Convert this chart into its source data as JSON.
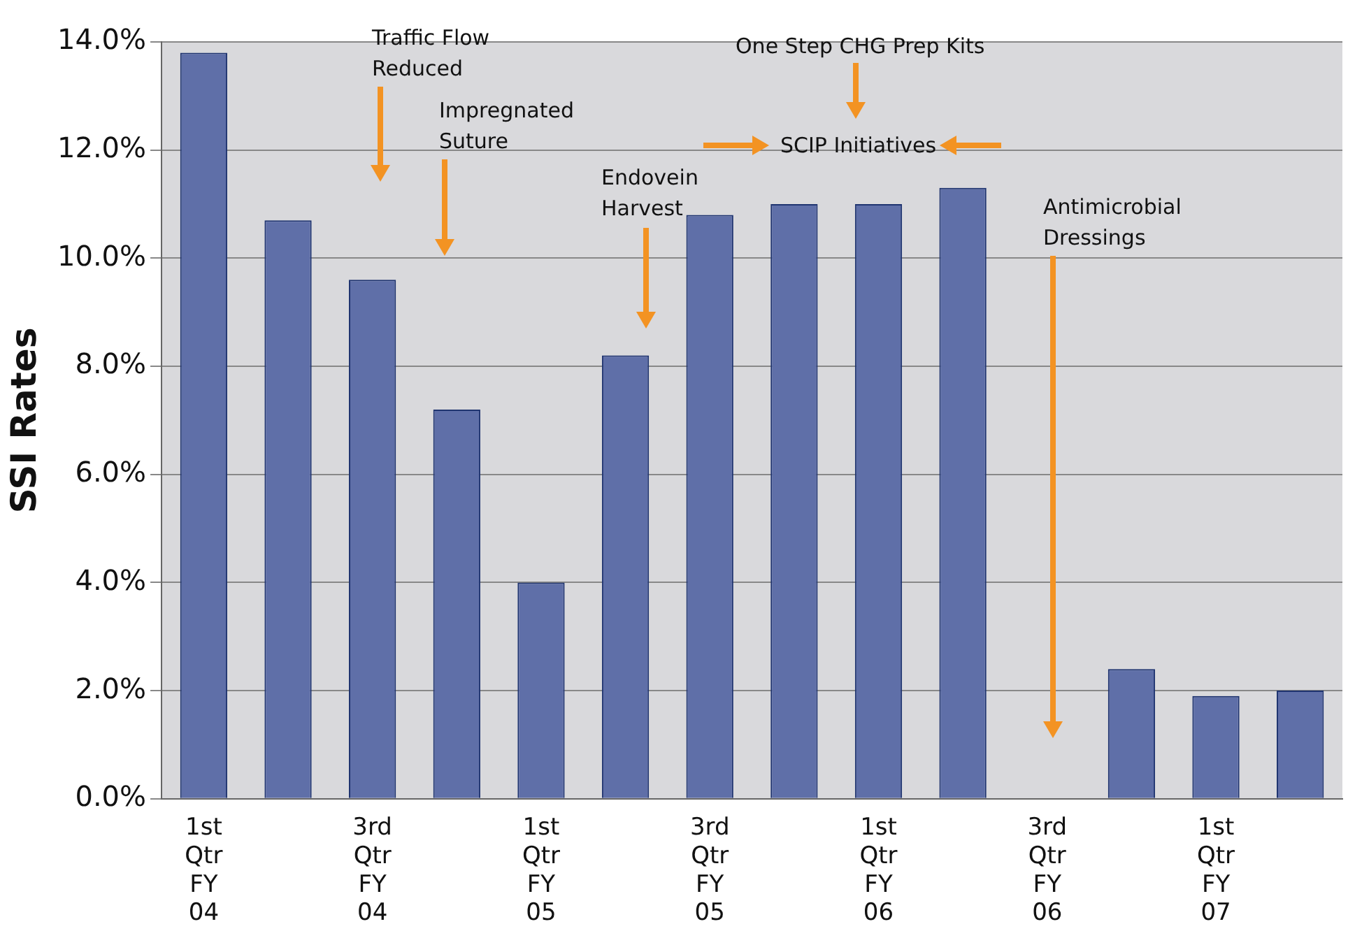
{
  "chart_data": {
    "type": "bar",
    "ylabel": "SSI Rates",
    "categories": [
      "1st Qtr FY 04",
      null,
      "3rd Qtr FY 04",
      null,
      "1st Qtr FY 05",
      null,
      "3rd Qtr FY 05",
      null,
      "1st Qtr FY 06",
      null,
      "3rd Qtr FY 06",
      null,
      "1st Qtr FY 07",
      null
    ],
    "values": [
      13.8,
      10.7,
      9.6,
      7.2,
      4.0,
      8.2,
      10.8,
      11.0,
      11.0,
      11.3,
      0,
      2.4,
      1.9,
      2.0
    ],
    "color": "#5f6fa8",
    "ylim": [
      0,
      14
    ],
    "yticks": [
      {
        "value": 0,
        "label": "0.0%"
      },
      {
        "value": 2,
        "label": "2.0%"
      },
      {
        "value": 4,
        "label": "4.0%"
      },
      {
        "value": 6,
        "label": "6.0%"
      },
      {
        "value": 8,
        "label": "8.0%"
      },
      {
        "value": 10,
        "label": "10.0%"
      },
      {
        "value": 12,
        "label": "12.0%"
      },
      {
        "value": 14,
        "label": "14.0%"
      }
    ],
    "grid": "y",
    "annotations": [
      "Traffic Flow Reduced",
      "Impregnated Suture",
      "Endovein Harvest",
      "One Step CHG Prep Kits",
      "SCIP Initiatives",
      "Antimicrobial Dressings"
    ]
  }
}
